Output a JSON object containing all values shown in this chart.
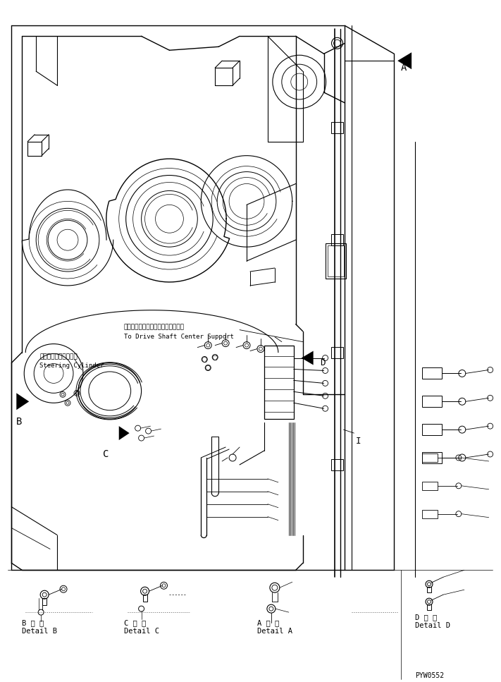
{
  "bg_color": "#ffffff",
  "line_color": "#000000",
  "fig_width": 7.11,
  "fig_height": 9.67,
  "dpi": 100,
  "part_code": "PYW0552",
  "labels": {
    "detail_b_jp": "B 詳 細",
    "detail_b_en": "Detail B",
    "detail_c_jp": "C 詳 細",
    "detail_c_en": "Detail C",
    "detail_a_jp": "A 詳 細",
    "detail_a_en": "Detail A",
    "detail_d_jp": "D 詳 細",
    "detail_d_en": "Detail D",
    "label_a": "A",
    "label_b": "B",
    "label_c": "C",
    "label_d": "D",
    "label_i": "I",
    "steering_jp": "ステアリングシリンダ",
    "steering_en": "Steering Cylinder",
    "driveshaft_jp": "ドライブシャフトセンタサポートへ",
    "driveshaft_en": "To Drive Shaft Center Support"
  },
  "font_monospace": "monospace"
}
